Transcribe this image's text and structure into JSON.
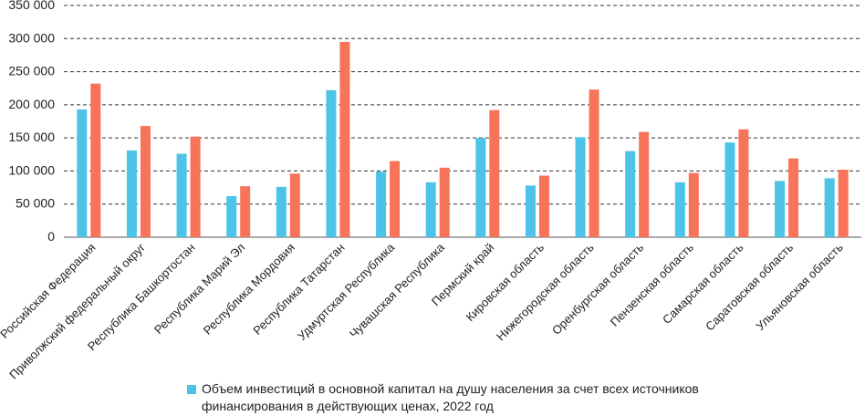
{
  "chart_data": {
    "type": "bar",
    "categories": [
      "Российская Федерация",
      "Приволжский федеральный округ",
      "Республика Башкортостан",
      "Республика Марий Эл",
      "Республика Мордовия",
      "Республика Татарстан",
      "Удмуртская Республика",
      "Чувашская Республика",
      "Пермский край",
      "Кировская область",
      "Нижегородская область",
      "Оренбургская область",
      "Пензенская область",
      "Самарская область",
      "Саратовская область",
      "Ульяновская область"
    ],
    "series": [
      {
        "name": "Объем инвестиций в основной капитал на душу населения за счет всех источников финансирования в действующих ценах, 2022 год",
        "color": "#4dc3e8",
        "values": [
          193000,
          131000,
          126000,
          62000,
          76000,
          222000,
          99000,
          83000,
          150000,
          78000,
          151000,
          130000,
          83000,
          143000,
          85000,
          89000
        ]
      },
      {
        "name": "",
        "color": "#f7735a",
        "values": [
          232000,
          168000,
          152000,
          77000,
          96000,
          295000,
          115000,
          105000,
          192000,
          93000,
          223000,
          159000,
          97000,
          163000,
          119000,
          102000
        ]
      }
    ],
    "yticks": [
      "0",
      "50 000",
      "100 000",
      "150 000",
      "200 000",
      "250 000",
      "300 000",
      "350 000"
    ],
    "ylim": [
      0,
      350000
    ],
    "xlabel": "",
    "ylabel": "",
    "title": "",
    "grid": "horizontal dashed",
    "legend_position": "bottom"
  }
}
